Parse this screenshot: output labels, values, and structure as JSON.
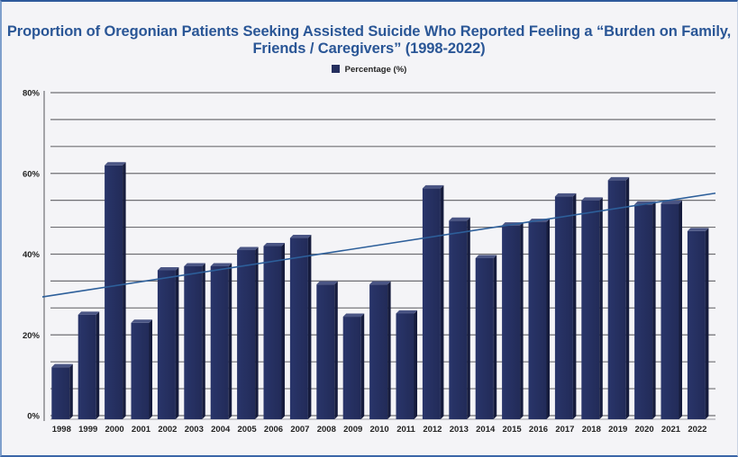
{
  "chart_data": {
    "type": "bar",
    "title": "Proportion of Oregonian Patients Seeking Assisted Suicide Who Reported Feeling a “Burden on Family, Friends / Caregivers” (1998-2022)",
    "title_lines": [
      "Proportion of Oregonian Patients Seeking Assisted Suicide Who Reported Feeling a “Burden on Family,",
      "Friends / Caregivers” (1998-2022)"
    ],
    "xlabel": "",
    "ylabel": "",
    "legend": {
      "entries": [
        "Percentage (%)"
      ],
      "placement": "top-center"
    },
    "categories": [
      "1998",
      "1999",
      "2000",
      "2001",
      "2002",
      "2003",
      "2004",
      "2005",
      "2006",
      "2007",
      "2008",
      "2009",
      "2010",
      "2011",
      "2012",
      "2013",
      "2014",
      "2015",
      "2016",
      "2017",
      "2018",
      "2019",
      "2020",
      "2021",
      "2022"
    ],
    "series": [
      {
        "name": "Percentage (%)",
        "color": "#252f5e",
        "values": [
          12,
          25,
          62,
          23,
          36,
          37,
          37,
          41,
          42,
          44,
          32.5,
          24.5,
          32.5,
          25.3,
          56.3,
          48.3,
          39,
          47.1,
          48,
          54.3,
          53.3,
          58.3,
          52.3,
          52.5,
          45.7
        ]
      }
    ],
    "trendline": {
      "type": "linear",
      "color": "#2d5f9a",
      "start_value": 29.4,
      "end_value": 55.1
    },
    "ylim": [
      0,
      80
    ],
    "yticks": [
      0,
      20,
      40,
      60,
      80
    ],
    "ytick_labels": [
      "0%",
      "20%",
      "40%",
      "60%",
      "80%"
    ],
    "minor_gridline_step": 6.667,
    "grid": true
  }
}
